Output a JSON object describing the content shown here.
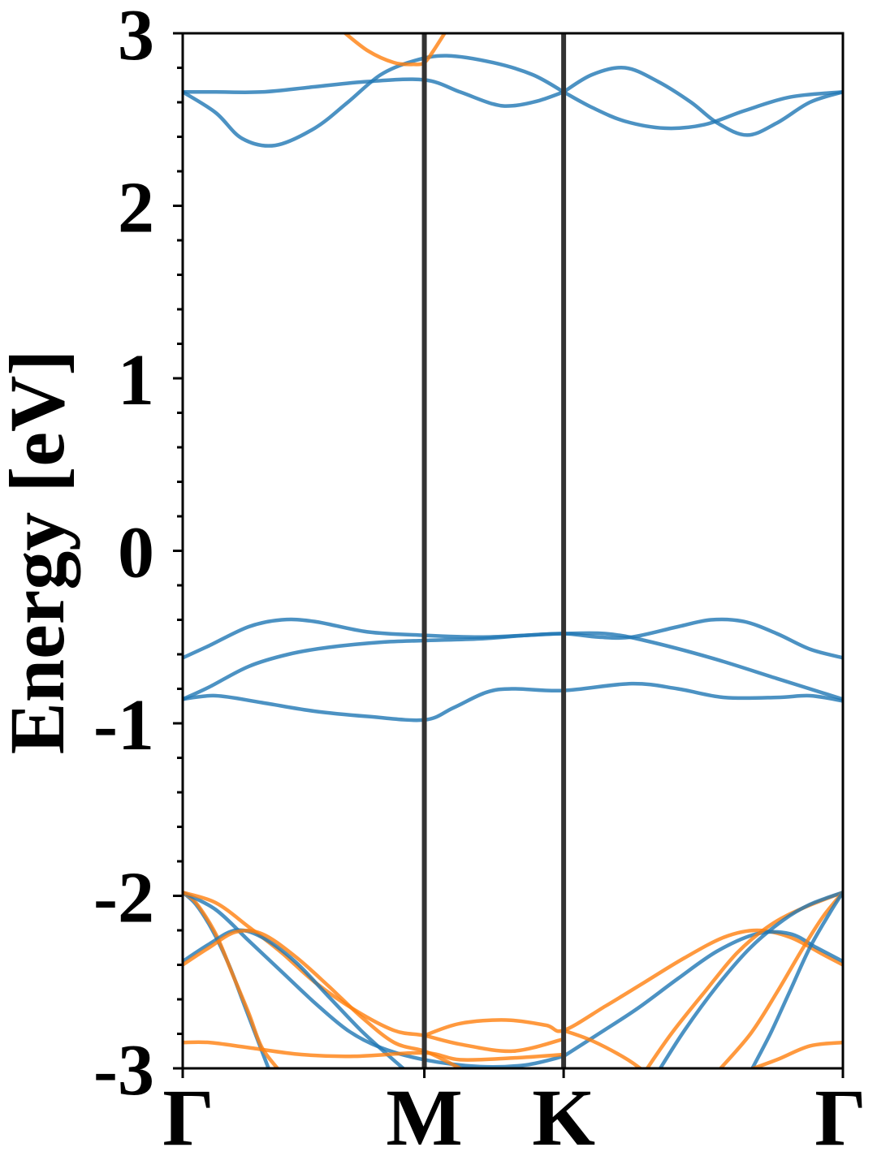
{
  "chart_data": {
    "type": "line",
    "title": "",
    "xlabel": "",
    "ylabel": "Energy [eV]",
    "ylim": [
      -3,
      3
    ],
    "xlim": [
      0,
      1
    ],
    "grid": false,
    "yticks": [
      {
        "value": 3,
        "label": "3"
      },
      {
        "value": 2,
        "label": "2"
      },
      {
        "value": 1,
        "label": "1"
      },
      {
        "value": 0,
        "label": "0"
      },
      {
        "value": -1,
        "label": "-1"
      },
      {
        "value": -2,
        "label": "-2"
      },
      {
        "value": -3,
        "label": "-3"
      }
    ],
    "kpoints": [
      {
        "x": 0.0,
        "label": "Γ"
      },
      {
        "x": 0.366,
        "label": "M"
      },
      {
        "x": 0.577,
        "label": "K"
      },
      {
        "x": 1.0,
        "label": "Γ"
      }
    ],
    "colors": {
      "blue": "#1f77b4",
      "orange": "#ff7f0e",
      "separator": "#333333"
    },
    "series": [
      {
        "color": "blue",
        "points": [
          [
            0,
            2.66
          ],
          [
            0.05,
            2.66
          ],
          [
            0.12,
            2.66
          ],
          [
            0.2,
            2.69
          ],
          [
            0.28,
            2.72
          ],
          [
            0.366,
            2.73
          ],
          [
            0.42,
            2.66
          ],
          [
            0.47,
            2.59
          ],
          [
            0.5,
            2.58
          ],
          [
            0.54,
            2.61
          ],
          [
            0.577,
            2.66
          ]
        ]
      },
      {
        "color": "blue",
        "points": [
          [
            0,
            2.66
          ],
          [
            0.05,
            2.54
          ],
          [
            0.09,
            2.39
          ],
          [
            0.14,
            2.35
          ],
          [
            0.2,
            2.45
          ],
          [
            0.25,
            2.6
          ],
          [
            0.3,
            2.76
          ],
          [
            0.35,
            2.84
          ],
          [
            0.4,
            2.87
          ],
          [
            0.47,
            2.83
          ],
          [
            0.53,
            2.76
          ],
          [
            0.577,
            2.66
          ]
        ]
      },
      {
        "color": "blue",
        "points": [
          [
            0.577,
            2.66
          ],
          [
            0.62,
            2.76
          ],
          [
            0.67,
            2.8
          ],
          [
            0.72,
            2.72
          ],
          [
            0.77,
            2.6
          ],
          [
            0.81,
            2.48
          ],
          [
            0.855,
            2.41
          ],
          [
            0.9,
            2.48
          ],
          [
            0.95,
            2.6
          ],
          [
            1.0,
            2.66
          ]
        ]
      },
      {
        "color": "blue",
        "points": [
          [
            0.577,
            2.66
          ],
          [
            0.62,
            2.57
          ],
          [
            0.67,
            2.49
          ],
          [
            0.73,
            2.45
          ],
          [
            0.79,
            2.47
          ],
          [
            0.85,
            2.55
          ],
          [
            0.92,
            2.63
          ],
          [
            1.0,
            2.66
          ]
        ]
      },
      {
        "color": "blue",
        "points": [
          [
            0,
            -0.62
          ],
          [
            0.04,
            -0.55
          ],
          [
            0.1,
            -0.44
          ],
          [
            0.15,
            -0.4
          ],
          [
            0.2,
            -0.41
          ],
          [
            0.28,
            -0.47
          ],
          [
            0.366,
            -0.49
          ],
          [
            0.45,
            -0.5
          ],
          [
            0.52,
            -0.49
          ],
          [
            0.577,
            -0.48
          ],
          [
            0.63,
            -0.5
          ],
          [
            0.68,
            -0.5
          ],
          [
            0.75,
            -0.44
          ],
          [
            0.8,
            -0.4
          ],
          [
            0.85,
            -0.41
          ],
          [
            0.9,
            -0.48
          ],
          [
            0.95,
            -0.57
          ],
          [
            1.0,
            -0.62
          ]
        ]
      },
      {
        "color": "blue",
        "points": [
          [
            0,
            -0.86
          ],
          [
            0.04,
            -0.79
          ],
          [
            0.1,
            -0.67
          ],
          [
            0.16,
            -0.6
          ],
          [
            0.22,
            -0.56
          ],
          [
            0.3,
            -0.53
          ],
          [
            0.366,
            -0.52
          ],
          [
            0.45,
            -0.51
          ],
          [
            0.52,
            -0.49
          ],
          [
            0.577,
            -0.48
          ],
          [
            0.64,
            -0.48
          ],
          [
            0.7,
            -0.52
          ],
          [
            0.8,
            -0.62
          ],
          [
            0.9,
            -0.74
          ],
          [
            1.0,
            -0.86
          ]
        ]
      },
      {
        "color": "blue",
        "points": [
          [
            0,
            -0.86
          ],
          [
            0.05,
            -0.84
          ],
          [
            0.12,
            -0.88
          ],
          [
            0.2,
            -0.93
          ],
          [
            0.28,
            -0.96
          ],
          [
            0.366,
            -0.98
          ],
          [
            0.41,
            -0.91
          ],
          [
            0.46,
            -0.82
          ],
          [
            0.5,
            -0.8
          ],
          [
            0.577,
            -0.81
          ],
          [
            0.68,
            -0.77
          ],
          [
            0.75,
            -0.8
          ],
          [
            0.82,
            -0.85
          ],
          [
            0.9,
            -0.85
          ],
          [
            0.95,
            -0.84
          ],
          [
            1.0,
            -0.87
          ]
        ]
      },
      {
        "color": "orange",
        "points": [
          [
            0.24,
            3.02
          ],
          [
            0.28,
            2.9
          ],
          [
            0.32,
            2.83
          ],
          [
            0.35,
            2.82
          ],
          [
            0.366,
            2.83
          ],
          [
            0.38,
            2.9
          ],
          [
            0.4,
            3.02
          ]
        ]
      },
      {
        "color": "blue",
        "points": [
          [
            0,
            -1.98
          ],
          [
            0.02,
            -2.05
          ],
          [
            0.045,
            -2.2
          ],
          [
            0.07,
            -2.4
          ],
          [
            0.09,
            -2.6
          ],
          [
            0.11,
            -2.8
          ],
          [
            0.132,
            -3.02
          ]
        ]
      },
      {
        "color": "orange",
        "points": [
          [
            0,
            -1.98
          ],
          [
            0.02,
            -2.04
          ],
          [
            0.05,
            -2.22
          ],
          [
            0.075,
            -2.45
          ],
          [
            0.1,
            -2.68
          ],
          [
            0.12,
            -2.88
          ],
          [
            0.148,
            -3.02
          ]
        ]
      },
      {
        "color": "blue",
        "points": [
          [
            0,
            -1.98
          ],
          [
            0.05,
            -2.08
          ],
          [
            0.1,
            -2.26
          ],
          [
            0.15,
            -2.44
          ],
          [
            0.2,
            -2.62
          ],
          [
            0.25,
            -2.78
          ],
          [
            0.3,
            -2.88
          ],
          [
            0.366,
            -2.95
          ],
          [
            0.45,
            -2.99
          ],
          [
            0.52,
            -2.98
          ],
          [
            0.577,
            -2.93
          ]
        ]
      },
      {
        "color": "orange",
        "points": [
          [
            0,
            -1.98
          ],
          [
            0.05,
            -2.04
          ],
          [
            0.1,
            -2.18
          ],
          [
            0.15,
            -2.33
          ],
          [
            0.2,
            -2.5
          ],
          [
            0.26,
            -2.66
          ],
          [
            0.32,
            -2.78
          ],
          [
            0.366,
            -2.81
          ],
          [
            0.42,
            -2.86
          ],
          [
            0.5,
            -2.9
          ],
          [
            0.577,
            -2.83
          ]
        ]
      },
      {
        "color": "blue",
        "points": [
          [
            0,
            -2.38
          ],
          [
            0.04,
            -2.28
          ],
          [
            0.08,
            -2.2
          ],
          [
            0.12,
            -2.24
          ],
          [
            0.17,
            -2.38
          ],
          [
            0.22,
            -2.58
          ],
          [
            0.27,
            -2.78
          ],
          [
            0.31,
            -2.92
          ],
          [
            0.34,
            -3.02
          ]
        ]
      },
      {
        "color": "orange",
        "points": [
          [
            0,
            -2.4
          ],
          [
            0.04,
            -2.3
          ],
          [
            0.08,
            -2.21
          ],
          [
            0.12,
            -2.22
          ],
          [
            0.17,
            -2.35
          ],
          [
            0.22,
            -2.52
          ],
          [
            0.27,
            -2.7
          ],
          [
            0.32,
            -2.85
          ],
          [
            0.366,
            -2.9
          ],
          [
            0.4,
            -2.96
          ],
          [
            0.43,
            -3.02
          ]
        ]
      },
      {
        "color": "orange",
        "points": [
          [
            0,
            -2.85
          ],
          [
            0.04,
            -2.85
          ],
          [
            0.1,
            -2.88
          ],
          [
            0.18,
            -2.92
          ],
          [
            0.26,
            -2.93
          ],
          [
            0.366,
            -2.91
          ],
          [
            0.42,
            -2.95
          ],
          [
            0.5,
            -2.94
          ],
          [
            0.577,
            -2.92
          ]
        ]
      },
      {
        "color": "orange",
        "points": [
          [
            0.366,
            -2.81
          ],
          [
            0.42,
            -2.74
          ],
          [
            0.49,
            -2.72
          ],
          [
            0.55,
            -2.75
          ],
          [
            0.577,
            -2.78
          ],
          [
            0.64,
            -2.64
          ],
          [
            0.7,
            -2.5
          ],
          [
            0.76,
            -2.36
          ],
          [
            0.82,
            -2.24
          ],
          [
            0.87,
            -2.2
          ],
          [
            0.92,
            -2.24
          ],
          [
            0.97,
            -2.34
          ],
          [
            1.0,
            -2.4
          ]
        ]
      },
      {
        "color": "blue",
        "points": [
          [
            0.577,
            -2.93
          ],
          [
            0.63,
            -2.8
          ],
          [
            0.69,
            -2.65
          ],
          [
            0.75,
            -2.48
          ],
          [
            0.81,
            -2.32
          ],
          [
            0.87,
            -2.22
          ],
          [
            0.92,
            -2.22
          ],
          [
            0.96,
            -2.3
          ],
          [
            1.0,
            -2.38
          ]
        ]
      },
      {
        "color": "orange",
        "points": [
          [
            0.577,
            -2.78
          ],
          [
            0.62,
            -2.84
          ],
          [
            0.67,
            -2.94
          ],
          [
            0.7,
            -3.02
          ]
        ]
      },
      {
        "color": "orange",
        "points": [
          [
            0.7,
            -3.02
          ],
          [
            0.74,
            -2.8
          ],
          [
            0.79,
            -2.56
          ],
          [
            0.84,
            -2.33
          ],
          [
            0.89,
            -2.17
          ],
          [
            0.94,
            -2.07
          ],
          [
            1.0,
            -1.98
          ]
        ]
      },
      {
        "color": "blue",
        "points": [
          [
            0.72,
            -3.02
          ],
          [
            0.76,
            -2.78
          ],
          [
            0.81,
            -2.52
          ],
          [
            0.86,
            -2.3
          ],
          [
            0.91,
            -2.14
          ],
          [
            0.95,
            -2.05
          ],
          [
            1.0,
            -1.98
          ]
        ]
      },
      {
        "color": "orange",
        "points": [
          [
            0.81,
            -3.02
          ],
          [
            0.86,
            -2.8
          ],
          [
            0.9,
            -2.56
          ],
          [
            0.94,
            -2.3
          ],
          [
            0.97,
            -2.12
          ],
          [
            1.0,
            -1.98
          ]
        ]
      },
      {
        "color": "blue",
        "points": [
          [
            0.86,
            -3.02
          ],
          [
            0.89,
            -2.8
          ],
          [
            0.92,
            -2.55
          ],
          [
            0.95,
            -2.3
          ],
          [
            0.98,
            -2.1
          ],
          [
            1.0,
            -1.98
          ]
        ]
      },
      {
        "color": "orange",
        "points": [
          [
            0.85,
            -3.02
          ],
          [
            0.9,
            -2.95
          ],
          [
            0.95,
            -2.87
          ],
          [
            1.0,
            -2.85
          ]
        ]
      }
    ]
  }
}
